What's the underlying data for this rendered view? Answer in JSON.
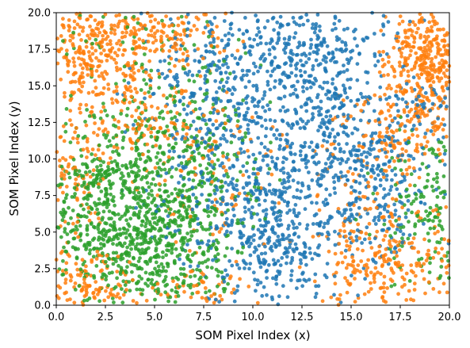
{
  "chart_data": {
    "type": "scatter",
    "xlabel": "SOM Pixel Index (x)",
    "ylabel": "SOM Pixel Index (y)",
    "xlim": [
      0,
      20
    ],
    "ylim": [
      0,
      20
    ],
    "xticks": [
      "0.0",
      "2.5",
      "5.0",
      "7.5",
      "10.0",
      "12.5",
      "15.0",
      "17.5",
      "20.0"
    ],
    "yticks": [
      "0.0",
      "2.5",
      "5.0",
      "7.5",
      "10.0",
      "12.5",
      "15.0",
      "17.5",
      "20.0"
    ],
    "grid": false,
    "legend": "none",
    "series": [
      {
        "color": "#1f77b4",
        "clusters": [
          {
            "x": 9.5,
            "y": 15.5,
            "sx": 2.6,
            "sy": 3.2,
            "n": 420
          },
          {
            "x": 13.0,
            "y": 18.0,
            "sx": 2.2,
            "sy": 1.6,
            "n": 200
          },
          {
            "x": 14.0,
            "y": 15.0,
            "sx": 1.0,
            "sy": 1.6,
            "n": 80
          },
          {
            "x": 11.5,
            "y": 4.5,
            "sx": 1.6,
            "sy": 2.6,
            "n": 320
          },
          {
            "x": 9.0,
            "y": 7.5,
            "sx": 2.0,
            "sy": 3.0,
            "n": 220
          },
          {
            "x": 14.5,
            "y": 9.5,
            "sx": 2.2,
            "sy": 1.8,
            "n": 200
          },
          {
            "x": 16.5,
            "y": 7.5,
            "sx": 1.6,
            "sy": 2.6,
            "n": 140
          },
          {
            "x": 18.5,
            "y": 13.5,
            "sx": 1.0,
            "sy": 1.2,
            "n": 60
          },
          {
            "x": 12.5,
            "y": 12.0,
            "sx": 2.5,
            "sy": 1.6,
            "n": 120
          }
        ]
      },
      {
        "color": "#ff7f0e",
        "clusters": [
          {
            "x": 1.8,
            "y": 17.0,
            "sx": 1.5,
            "sy": 2.2,
            "n": 320
          },
          {
            "x": 5.5,
            "y": 18.5,
            "sx": 1.8,
            "sy": 1.2,
            "n": 150
          },
          {
            "x": 19.0,
            "y": 17.0,
            "sx": 1.0,
            "sy": 1.6,
            "n": 320
          },
          {
            "x": 18.5,
            "y": 13.0,
            "sx": 1.4,
            "sy": 1.4,
            "n": 120
          },
          {
            "x": 1.5,
            "y": 1.5,
            "sx": 1.2,
            "sy": 1.2,
            "n": 120
          },
          {
            "x": 17.0,
            "y": 2.5,
            "sx": 2.2,
            "sy": 1.8,
            "n": 200
          },
          {
            "x": 16.0,
            "y": 6.0,
            "sx": 1.6,
            "sy": 2.5,
            "n": 110
          },
          {
            "x": 4.5,
            "y": 12.5,
            "sx": 2.2,
            "sy": 1.6,
            "n": 130
          },
          {
            "x": 8.0,
            "y": 9.0,
            "sx": 1.8,
            "sy": 2.6,
            "n": 90
          },
          {
            "x": 6.5,
            "y": 0.8,
            "sx": 2.0,
            "sy": 0.8,
            "n": 60
          },
          {
            "x": 1.0,
            "y": 9.0,
            "sx": 0.9,
            "sy": 2.6,
            "n": 70
          },
          {
            "x": 16.5,
            "y": 11.5,
            "sx": 1.5,
            "sy": 1.2,
            "n": 70
          }
        ]
      },
      {
        "color": "#2ca02c",
        "clusters": [
          {
            "x": 3.0,
            "y": 6.0,
            "sx": 2.4,
            "sy": 2.8,
            "n": 650
          },
          {
            "x": 5.0,
            "y": 10.0,
            "sx": 2.6,
            "sy": 2.2,
            "n": 320
          },
          {
            "x": 5.5,
            "y": 3.0,
            "sx": 1.8,
            "sy": 1.8,
            "n": 200
          },
          {
            "x": 19.0,
            "y": 6.5,
            "sx": 1.2,
            "sy": 2.8,
            "n": 170
          },
          {
            "x": 7.0,
            "y": 6.0,
            "sx": 1.4,
            "sy": 2.2,
            "n": 110
          },
          {
            "x": 6.5,
            "y": 15.0,
            "sx": 2.0,
            "sy": 2.0,
            "n": 70
          },
          {
            "x": 3.0,
            "y": 18.5,
            "sx": 1.4,
            "sy": 1.4,
            "n": 40
          }
        ]
      }
    ]
  }
}
